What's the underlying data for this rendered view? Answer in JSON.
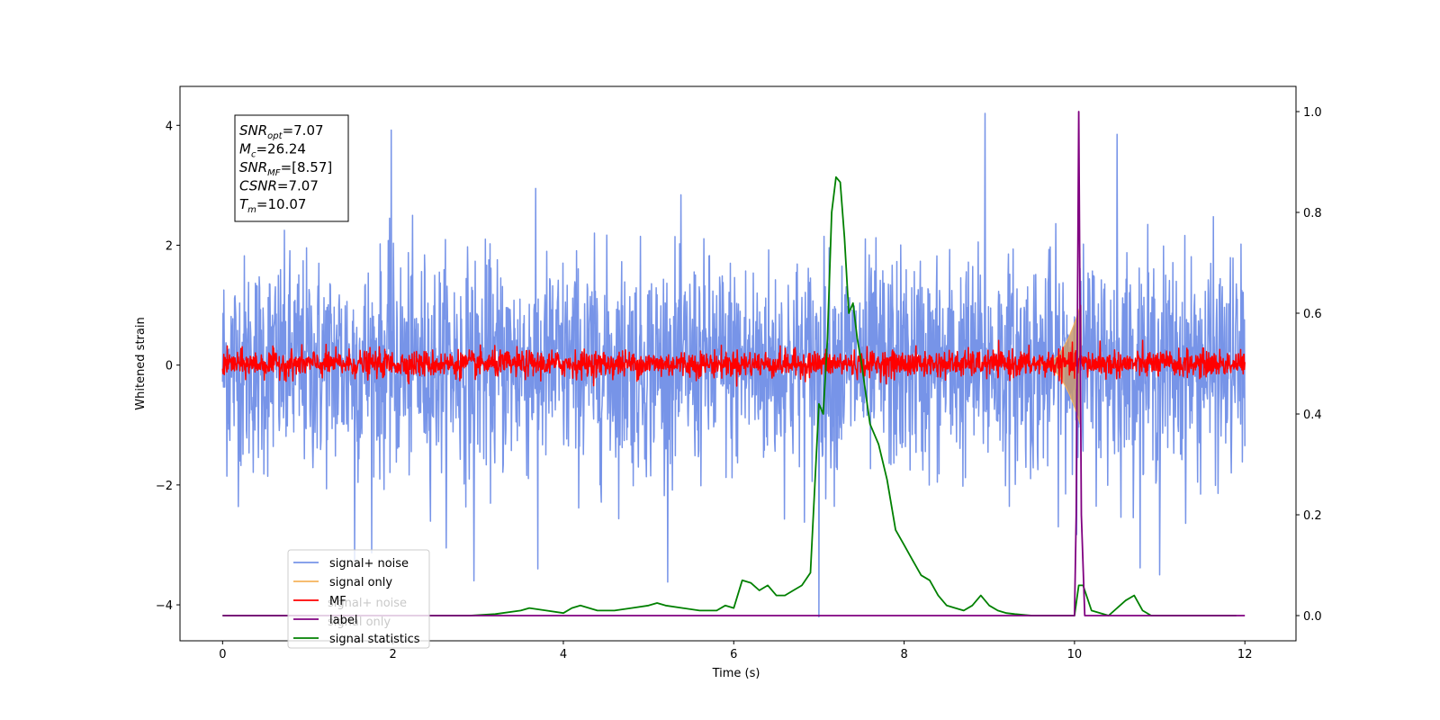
{
  "chart_data": {
    "type": "line",
    "xlabel": "Time (s)",
    "ylabel": "Whitened strain",
    "xlim": [
      -0.5,
      12.6
    ],
    "ylim": [
      -4.6,
      4.65
    ],
    "y2lim": [
      -0.05,
      1.05
    ],
    "xticks": [
      0,
      2,
      4,
      6,
      8,
      10,
      12
    ],
    "yticks": [
      4,
      2,
      0,
      -2,
      -4
    ],
    "y2ticks": [
      1.0,
      0.8,
      0.6,
      0.4,
      0.2,
      0.0
    ],
    "tick_labels": {
      "x": [
        "0",
        "2",
        "4",
        "6",
        "8",
        "10",
        "12"
      ],
      "y": [
        "4",
        "2",
        "0",
        "−2",
        "−4"
      ],
      "y2": [
        "1.0",
        "0.8",
        "0.6",
        "0.4",
        "0.2",
        "0.0"
      ]
    },
    "grid": false,
    "legend_position": "lower-left",
    "legend": [
      "signal+ noise",
      "signal only",
      "MF",
      "label",
      "signal statistics"
    ],
    "ghost_legend": [
      "signal+ noise",
      "signal only"
    ],
    "colors": {
      "signal_noise": "#7794e8",
      "signal_only": "#f5b35b",
      "mf": "#ff0000",
      "label": "#800080",
      "statistics": "#008000",
      "chirp_fill": "#c8996e"
    },
    "info_box": [
      {
        "base": "SNR",
        "sub": "opt",
        "rest": "=7.07"
      },
      {
        "base": "M",
        "sub": "c",
        "rest": "=26.24"
      },
      {
        "base": "SNR",
        "sub": "MF",
        "rest": "=[8.57]"
      },
      {
        "base": "CSNR",
        "sub": "",
        "rest": "=7.07"
      },
      {
        "base": "T",
        "sub": "m",
        "rest": "=10.07"
      }
    ],
    "series": [
      {
        "name": "signal+ noise",
        "axis": "left",
        "kind": "noise-band",
        "x_range": [
          0,
          12
        ],
        "amplitude_sd": 0.9,
        "approx_extremes": [
          [
            1.98,
            3.92
          ],
          [
            8.95,
            4.2
          ],
          [
            10.5,
            3.85
          ],
          [
            1.55,
            -3.25
          ],
          [
            2.95,
            -3.6
          ],
          [
            3.7,
            -3.4
          ],
          [
            7.0,
            -4.2
          ],
          [
            11.0,
            -3.5
          ]
        ]
      },
      {
        "name": "signal only",
        "axis": "left",
        "kind": "chirp",
        "x_range": [
          9.6,
          10.07
        ],
        "peak_time": 10.07,
        "peak_amplitude": 1.0
      },
      {
        "name": "MF",
        "axis": "left",
        "kind": "noise-band",
        "x_range": [
          0,
          12
        ],
        "amplitude_sd": 0.11,
        "approx_extremes": [
          [
            10.07,
            1.0
          ],
          [
            10.3,
            0.4
          ]
        ]
      },
      {
        "name": "label",
        "axis": "right",
        "x": [
          0,
          10.0,
          10.02,
          10.05,
          10.08,
          10.12,
          10.13,
          12.0
        ],
        "values": [
          0.0,
          0.0,
          0.2,
          1.0,
          0.2,
          0.0,
          0.0,
          0.0
        ]
      },
      {
        "name": "signal statistics",
        "axis": "right",
        "x": [
          0,
          0.5,
          1,
          1.5,
          2,
          2.5,
          2.9,
          3.2,
          3.5,
          3.6,
          3.8,
          4.0,
          4.1,
          4.2,
          4.4,
          4.6,
          4.8,
          5.0,
          5.1,
          5.2,
          5.4,
          5.6,
          5.8,
          5.9,
          6.0,
          6.1,
          6.2,
          6.3,
          6.4,
          6.5,
          6.6,
          6.7,
          6.8,
          6.9,
          7.0,
          7.05,
          7.1,
          7.15,
          7.2,
          7.25,
          7.3,
          7.35,
          7.4,
          7.45,
          7.5,
          7.6,
          7.7,
          7.8,
          7.9,
          8.0,
          8.1,
          8.2,
          8.3,
          8.4,
          8.5,
          8.6,
          8.7,
          8.8,
          8.9,
          9.0,
          9.1,
          9.2,
          9.3,
          9.5,
          9.8,
          10.0,
          10.05,
          10.1,
          10.2,
          10.4,
          10.6,
          10.7,
          10.8,
          10.9,
          11.0,
          11.2,
          11.5,
          11.9
        ],
        "values": [
          0.0,
          0.0,
          0.0,
          0.0,
          0.0,
          0.0,
          0.0,
          0.003,
          0.01,
          0.015,
          0.01,
          0.005,
          0.015,
          0.02,
          0.01,
          0.01,
          0.015,
          0.02,
          0.025,
          0.02,
          0.015,
          0.01,
          0.01,
          0.02,
          0.015,
          0.07,
          0.065,
          0.05,
          0.06,
          0.04,
          0.04,
          0.05,
          0.06,
          0.085,
          0.42,
          0.4,
          0.55,
          0.8,
          0.87,
          0.86,
          0.75,
          0.6,
          0.62,
          0.55,
          0.5,
          0.38,
          0.34,
          0.27,
          0.17,
          0.14,
          0.11,
          0.08,
          0.07,
          0.04,
          0.02,
          0.015,
          0.01,
          0.02,
          0.04,
          0.02,
          0.01,
          0.005,
          0.003,
          0.0,
          0.0,
          0.0,
          0.06,
          0.06,
          0.01,
          0.0,
          0.03,
          0.04,
          0.01,
          0.0,
          0.0,
          0.0,
          0.0,
          0.0
        ]
      }
    ]
  }
}
